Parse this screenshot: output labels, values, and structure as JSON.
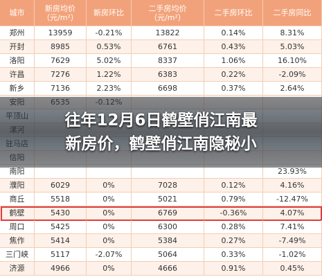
{
  "table": {
    "header": [
      [
        "城市"
      ],
      [
        "新房均价",
        "（元/m²）"
      ],
      [
        "新房环比"
      ],
      [
        "二手房均价",
        "（元/m²）"
      ],
      [
        "二手房环比"
      ],
      [
        "二手房同比"
      ]
    ],
    "rows": [
      [
        "郑州",
        "13959",
        "-0.21%",
        "13822",
        "0.14%",
        "8.31%"
      ],
      [
        "开封",
        "8985",
        "0.53%",
        "6761",
        "0.43%",
        "5.03%"
      ],
      [
        "洛阳",
        "7629",
        "5.02%",
        "8337",
        "1.06%",
        "16.10%"
      ],
      [
        "许昌",
        "7276",
        "1.22%",
        "6383",
        "0.22%",
        "-2.09%"
      ],
      [
        "新乡",
        "7136",
        "2.23%",
        "6698",
        "0.37%",
        "2.64%"
      ],
      [
        "安阳",
        "6535",
        "-0.12%",
        null,
        null,
        null
      ],
      [
        "平顶山",
        null,
        null,
        null,
        null,
        null
      ],
      [
        "漯河",
        null,
        null,
        null,
        null,
        null
      ],
      [
        "驻马店",
        null,
        null,
        null,
        null,
        null
      ],
      [
        "信阳",
        null,
        null,
        null,
        null,
        null
      ],
      [
        "南阳",
        null,
        null,
        null,
        null,
        "23.93%"
      ],
      [
        "濮阳",
        "6029",
        "0%",
        "7028",
        "0.12%",
        "4.16%"
      ],
      [
        "商丘",
        "5518",
        "0%",
        "5021",
        "0.79%",
        "-12.47%"
      ],
      [
        "鹤壁",
        "5430",
        "0%",
        "6769",
        "-0.36%",
        "4.07%"
      ],
      [
        "周口",
        "5425",
        "0%",
        "6300",
        "0.28%",
        "7.41%"
      ],
      [
        "焦作",
        "5414",
        "0%",
        "5384",
        "0.27%",
        "-7.49%"
      ],
      [
        "三门峡",
        "5117",
        "-2.07%",
        "5064",
        "0.33%",
        "-1.02%"
      ],
      [
        "济源",
        "4966",
        "0%",
        "4666",
        "0.91%",
        "0.45%"
      ]
    ]
  },
  "overlay": {
    "title_lines": [
      "往年12月6日鹤壁俏江南最",
      "新房价，鹤壁俏江南隐秘小"
    ]
  }
}
